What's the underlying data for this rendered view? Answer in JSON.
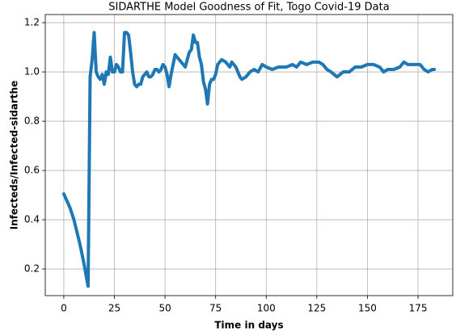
{
  "chart_data": {
    "type": "line",
    "title": "SIDARTHE Model Goodness of Fit, Togo Covid-19 Data",
    "xlabel": "Time in days",
    "ylabel": "Infecteds/Infected-sidarthe",
    "x": [
      0,
      3,
      5,
      8,
      10,
      12,
      13,
      14,
      15,
      16,
      17,
      18,
      19,
      20,
      21,
      22,
      23,
      24,
      25,
      26,
      27,
      28,
      29,
      30,
      31,
      32,
      33,
      34,
      35,
      36,
      37,
      38,
      39,
      40,
      41,
      42,
      43,
      44,
      45,
      46,
      47,
      48,
      49,
      50,
      51,
      52,
      53,
      54,
      55,
      56,
      57,
      58,
      59,
      60,
      61,
      62,
      63,
      64,
      65,
      66,
      67,
      68,
      69,
      70,
      71,
      72,
      73,
      74,
      75,
      76,
      78,
      80,
      82,
      83,
      85,
      87,
      88,
      90,
      92,
      94,
      96,
      98,
      100,
      103,
      106,
      110,
      113,
      115,
      117,
      120,
      123,
      126,
      128,
      130,
      132,
      135,
      138,
      141,
      144,
      147,
      150,
      153,
      156,
      158,
      160,
      163,
      166,
      168,
      170,
      173,
      176,
      178,
      180,
      182,
      183
    ],
    "values": [
      0.505,
      0.45,
      0.4,
      0.3,
      0.22,
      0.13,
      0.98,
      1.05,
      1.16,
      1.0,
      0.98,
      0.97,
      0.99,
      0.95,
      1.0,
      0.99,
      1.06,
      1.0,
      1.0,
      1.03,
      1.02,
      1.0,
      1.0,
      1.16,
      1.16,
      1.15,
      1.08,
      1.0,
      0.95,
      0.94,
      0.95,
      0.95,
      0.98,
      0.99,
      1.0,
      0.98,
      0.98,
      0.99,
      1.01,
      1.01,
      1.0,
      1.01,
      1.03,
      1.02,
      0.99,
      0.94,
      0.99,
      1.03,
      1.07,
      1.06,
      1.05,
      1.04,
      1.03,
      1.02,
      1.05,
      1.08,
      1.09,
      1.15,
      1.12,
      1.12,
      1.06,
      1.03,
      0.96,
      0.93,
      0.87,
      0.95,
      0.97,
      0.97,
      0.99,
      1.03,
      1.05,
      1.04,
      1.02,
      1.04,
      1.02,
      0.98,
      0.97,
      0.98,
      1.0,
      1.01,
      1.0,
      1.03,
      1.02,
      1.01,
      1.02,
      1.02,
      1.03,
      1.02,
      1.04,
      1.03,
      1.04,
      1.04,
      1.03,
      1.01,
      1.0,
      0.98,
      1.0,
      1.0,
      1.02,
      1.02,
      1.03,
      1.03,
      1.02,
      1.0,
      1.01,
      1.01,
      1.02,
      1.04,
      1.03,
      1.03,
      1.03,
      1.01,
      1.0,
      1.01,
      1.01
    ],
    "color": "#1f77b4",
    "xlim": [
      -9.15,
      192.15
    ],
    "xticks": [
      0,
      25,
      50,
      75,
      100,
      125,
      150,
      175
    ],
    "ylim": [
      0.092,
      1.233
    ],
    "yticks": [
      0.2,
      0.4,
      0.6,
      0.8,
      {
        "value": 1.0,
        "label": "1.0"
      },
      1.2
    ],
    "grid": true
  }
}
